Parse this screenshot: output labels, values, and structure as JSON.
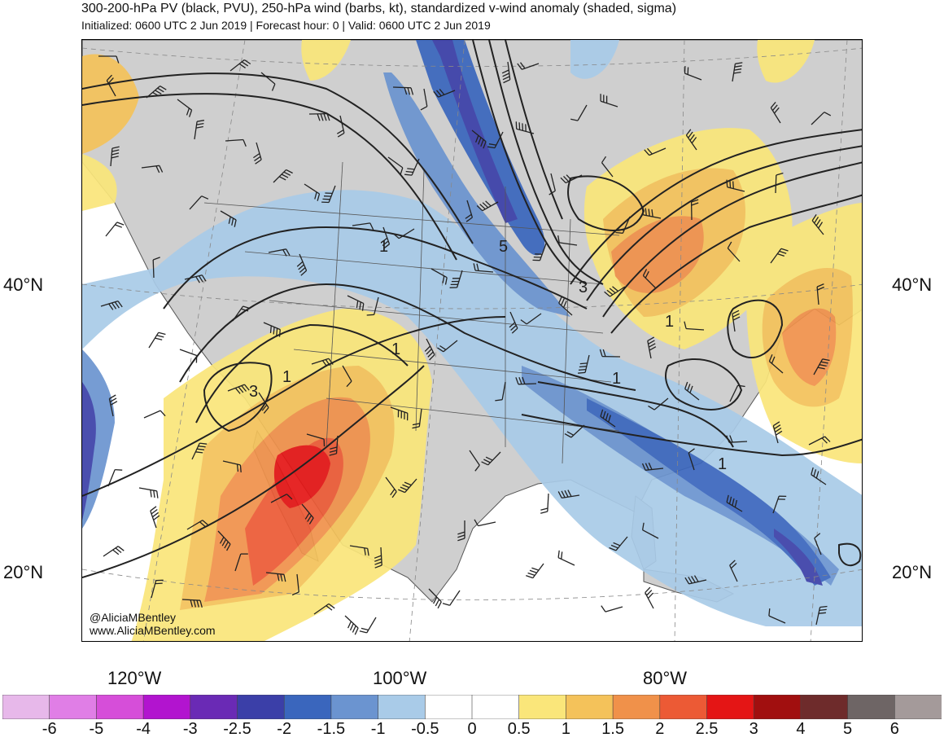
{
  "header": {
    "title": "300-200-hPa PV (black, PVU), 250-hPa wind (barbs, kt), standardized v-wind anomaly (shaded, sigma)",
    "subtitle": "Initialized: 0600 UTC 2 Jun 2019 | Forecast hour: 0 | Valid: 0600 UTC 2 Jun 2019"
  },
  "axes": {
    "lat_left": [
      "40°N",
      "20°N"
    ],
    "lat_right": [
      "40°N",
      "20°N"
    ],
    "lon_bottom": [
      "120°W",
      "100°W",
      "80°W"
    ]
  },
  "contour_labels": [
    "1",
    "5",
    "3",
    "1",
    "3",
    "1",
    "1",
    "1",
    "1"
  ],
  "credit": {
    "handle": "@AliciaMBentley",
    "website": "www.AliciaMBentley.com"
  },
  "colorbar": {
    "labels": [
      "-6",
      "-5",
      "-4",
      "-3",
      "-2.5",
      "-2",
      "-1.5",
      "-1",
      "-0.5",
      "0",
      "0.5",
      "1",
      "1.5",
      "2",
      "2.5",
      "3",
      "4",
      "5",
      "6"
    ],
    "colors": [
      "#e7b8ea",
      "#e07ee6",
      "#d64ed9",
      "#b214cf",
      "#6a2ab5",
      "#3b3fa8",
      "#3a66bd",
      "#6b94d0",
      "#a9cbe8",
      "#ffffff",
      "#ffffff",
      "#fae67a",
      "#f4c25a",
      "#f0914a",
      "#ec5a35",
      "#e41515",
      "#a10f0f",
      "#6e2b2b",
      "#6e6565",
      "#a49a9a"
    ]
  }
}
